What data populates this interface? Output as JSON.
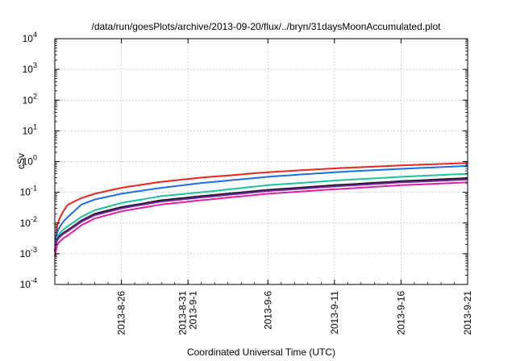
{
  "chart_data": {
    "type": "line",
    "title": "/data/run/goesPlots/archive/2013-09-20/flux/../bryn/31daysMoonAccumulated.plot",
    "xlabel": "Coordinated Universal Time (UTC)",
    "ylabel": "cSv",
    "yscale": "log",
    "ylim": [
      0.0001,
      10000
    ],
    "xlim": [
      "2013-08-21",
      "2013-09-21"
    ],
    "grid": true,
    "y_ticks": [
      {
        "value": 0.0001,
        "label": "10-4",
        "base": "10",
        "exp": "-4"
      },
      {
        "value": 0.001,
        "label": "10-3",
        "base": "10",
        "exp": "-3"
      },
      {
        "value": 0.01,
        "label": "10-2",
        "base": "10",
        "exp": "-2"
      },
      {
        "value": 0.1,
        "label": "10-1",
        "base": "10",
        "exp": "-1"
      },
      {
        "value": 1,
        "label": "100",
        "base": "10",
        "exp": "0"
      },
      {
        "value": 10,
        "label": "101",
        "base": "10",
        "exp": "1"
      },
      {
        "value": 100,
        "label": "102",
        "base": "10",
        "exp": "2"
      },
      {
        "value": 1000,
        "label": "103",
        "base": "10",
        "exp": "3"
      },
      {
        "value": 10000,
        "label": "104",
        "base": "10",
        "exp": "4"
      }
    ],
    "x_ticks": [
      {
        "date": "2013-08-26",
        "lines": [
          "2013-8-26"
        ]
      },
      {
        "date": "2013-08-31",
        "lines": [
          "2013-8-31",
          "2013-9-1"
        ]
      },
      {
        "date": "2013-09-06",
        "lines": [
          "2013-9-6"
        ]
      },
      {
        "date": "2013-09-11",
        "lines": [
          "2013-9-11"
        ]
      },
      {
        "date": "2013-09-16",
        "lines": [
          "2013-9-16"
        ]
      },
      {
        "date": "2013-09-21",
        "lines": [
          "2013-9-21"
        ]
      }
    ],
    "x": [
      "2013-08-21",
      "2013-08-22",
      "2013-08-23",
      "2013-08-24",
      "2013-08-26",
      "2013-08-29",
      "2013-09-01",
      "2013-09-06",
      "2013-09-11",
      "2013-09-16",
      "2013-09-21"
    ],
    "series": [
      {
        "color": "#e8261e",
        "values": [
          0.0012,
          0.04,
          0.065,
          0.09,
          0.14,
          0.22,
          0.3,
          0.45,
          0.6,
          0.75,
          0.9
        ]
      },
      {
        "color": "#1a6ee6",
        "values": [
          0.0012,
          0.016,
          0.04,
          0.058,
          0.09,
          0.14,
          0.2,
          0.32,
          0.45,
          0.58,
          0.72
        ]
      },
      {
        "color": "#1ec39a",
        "values": [
          0.0012,
          0.008,
          0.016,
          0.026,
          0.045,
          0.075,
          0.1,
          0.17,
          0.24,
          0.32,
          0.4
        ]
      },
      {
        "color": "#1a1a1a",
        "values": [
          0.0012,
          0.006,
          0.012,
          0.02,
          0.033,
          0.055,
          0.075,
          0.12,
          0.17,
          0.23,
          0.29
        ]
      },
      {
        "color": "#7a1fa8",
        "values": [
          0.0012,
          0.0055,
          0.011,
          0.018,
          0.03,
          0.05,
          0.068,
          0.11,
          0.155,
          0.21,
          0.26
        ]
      },
      {
        "color": "#e020a0",
        "values": [
          0.0008,
          0.004,
          0.0085,
          0.014,
          0.024,
          0.04,
          0.055,
          0.09,
          0.125,
          0.17,
          0.21
        ]
      }
    ]
  }
}
